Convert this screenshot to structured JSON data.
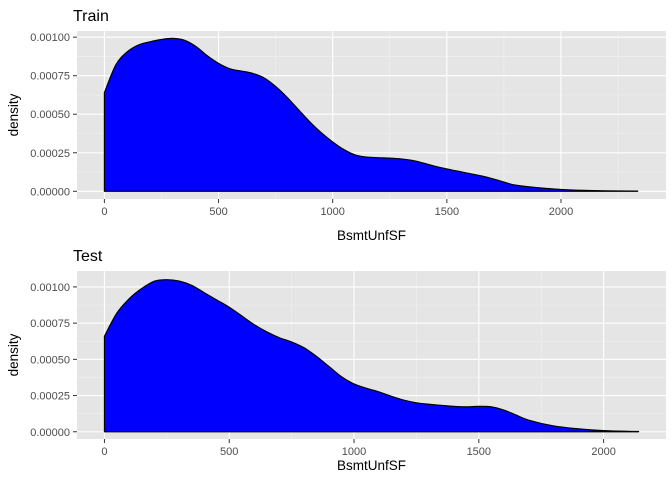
{
  "chart_data": [
    {
      "type": "area",
      "title": "Train",
      "xlabel": "BsmtUnfSF",
      "ylabel": "density",
      "xlim": [
        -120,
        2460
      ],
      "ylim": [
        -5e-05,
        0.00104
      ],
      "x_breaks": [
        0,
        500,
        1000,
        1500,
        2000
      ],
      "x_tick_labels": [
        "0",
        "500",
        "1000",
        "1500",
        "2000"
      ],
      "y_breaks": [
        0,
        0.00025,
        0.0005,
        0.00075,
        0.001
      ],
      "y_tick_labels": [
        "0.00000",
        "0.00025",
        "0.00050",
        "0.00075",
        "0.00100"
      ],
      "fill": "#0000ff",
      "outline": "#000000",
      "x": [
        0,
        50,
        100,
        150,
        200,
        250,
        300,
        350,
        400,
        450,
        500,
        550,
        600,
        650,
        700,
        750,
        800,
        850,
        900,
        950,
        1000,
        1050,
        1100,
        1150,
        1200,
        1250,
        1300,
        1350,
        1400,
        1450,
        1500,
        1550,
        1600,
        1650,
        1700,
        1750,
        1800,
        1900,
        2000,
        2100,
        2200,
        2336
      ],
      "y": [
        0.00064,
        0.00082,
        0.000905,
        0.00095,
        0.00097,
        0.000985,
        0.000992,
        0.00098,
        0.00094,
        0.00088,
        0.00083,
        0.000795,
        0.00078,
        0.000765,
        0.000735,
        0.00068,
        0.00061,
        0.00053,
        0.00045,
        0.00038,
        0.00032,
        0.00027,
        0.000235,
        0.000222,
        0.000218,
        0.000215,
        0.00021,
        0.0002,
        0.000182,
        0.000162,
        0.000145,
        0.00013,
        0.000115,
        0.0001,
        8.2e-05,
        6e-05,
        4e-05,
        2.3e-05,
        1.2e-05,
        6e-06,
        3e-06,
        1e-06
      ]
    },
    {
      "type": "area",
      "title": "Test",
      "xlabel": "BsmtUnfSF",
      "ylabel": "density",
      "xlim": [
        -110,
        2250
      ],
      "ylim": [
        -5e-05,
        0.00111
      ],
      "x_breaks": [
        0,
        500,
        1000,
        1500,
        2000
      ],
      "x_tick_labels": [
        "0",
        "500",
        "1000",
        "1500",
        "2000"
      ],
      "y_breaks": [
        0,
        0.00025,
        0.0005,
        0.00075,
        0.001
      ],
      "y_tick_labels": [
        "0.00000",
        "0.00025",
        "0.00050",
        "0.00075",
        "0.00100"
      ],
      "fill": "#0000ff",
      "outline": "#000000",
      "x": [
        0,
        50,
        100,
        150,
        200,
        250,
        300,
        350,
        400,
        450,
        500,
        550,
        600,
        650,
        700,
        750,
        800,
        850,
        900,
        950,
        1000,
        1050,
        1100,
        1150,
        1200,
        1250,
        1300,
        1350,
        1400,
        1450,
        1500,
        1550,
        1600,
        1650,
        1700,
        1800,
        1900,
        2000,
        2100,
        2140
      ],
      "y": [
        0.00066,
        0.00082,
        0.00092,
        0.00099,
        0.00104,
        0.00105,
        0.00104,
        0.00101,
        0.00096,
        0.00091,
        0.00086,
        0.0008,
        0.00074,
        0.00069,
        0.00065,
        0.00062,
        0.00058,
        0.00052,
        0.00045,
        0.00038,
        0.00033,
        0.0003,
        0.000275,
        0.000245,
        0.000218,
        0.0002,
        0.00019,
        0.000182,
        0.000175,
        0.000172,
        0.000175,
        0.000172,
        0.00015,
        0.000115,
        8e-05,
        4e-05,
        2e-05,
        8e-06,
        3e-06,
        2e-06
      ]
    }
  ]
}
